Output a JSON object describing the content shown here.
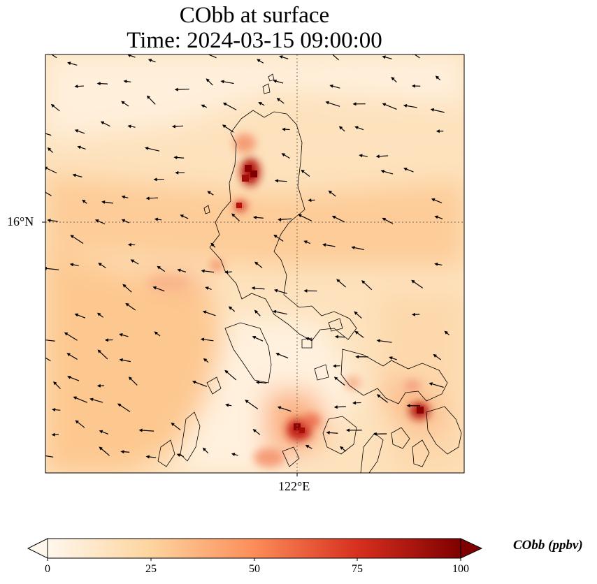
{
  "title": {
    "line1": "CObb at surface",
    "line2": "Time: 2024-03-15 09:00:00"
  },
  "map": {
    "lat_label": "16°N",
    "lon_label": "122°E",
    "gridlines": true,
    "quiver": true,
    "colormap": "OrRd"
  },
  "colorbar": {
    "label": "CObb (ppbv)",
    "ticks": [
      "0",
      "25",
      "50",
      "75",
      "100"
    ],
    "range": [
      0,
      100
    ],
    "extend": "both",
    "colors": [
      "#fff7ec",
      "#fdd49e",
      "#fc8d59",
      "#d7301f",
      "#7f0000"
    ]
  }
}
